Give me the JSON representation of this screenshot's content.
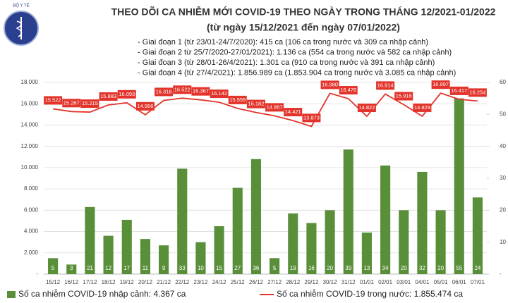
{
  "logo_text": "BỘ Y TẾ",
  "chart_data": {
    "type": "combo",
    "title": "THEO DÕI CA NHIỄM MỚI COVID-19 THEO NGÀY TRONG THÁNG 12/2021-01/2022",
    "subtitle": "(từ ngày 15/12/2021 đến ngày 07/01/2022)",
    "annotations": [
      "- Giai đoạn 1 (từ 23/01-24/7/2020): 415 ca (106 ca trong nước và 309 ca nhập cảnh)",
      "- Giai đoạn 2 từ 25/7/2020-27/01/2021): 1.136 ca (554 ca trong nước và 582 ca nhập cảnh)",
      "- Giai đoạn 3 (từ 28/01-26/4/2021): 1.301 ca (910 ca trong nước và 391 ca nhập cảnh)",
      "- Giai đoạn 4 (từ 27/4/2021): 1.856.989 ca (1.853.904 ca trong nước và 3.085 ca nhập cảnh)"
    ],
    "categories": [
      "15/12",
      "16/12",
      "17/12",
      "18/12",
      "19/12",
      "20/12",
      "21/12",
      "22/12",
      "23/12",
      "24/12",
      "25/12",
      "26/12",
      "27/12",
      "28/12",
      "29/12",
      "30/12",
      "31/12",
      "01/01",
      "02/01",
      "03/01",
      "04/01",
      "05/01",
      "06/01",
      "07/01"
    ],
    "series": [
      {
        "name": "Số ca nhiễm COVID-19 nhập cảnh: 4.367 ca",
        "type": "bar",
        "axis": "y2",
        "color": "#5a8f3a",
        "values": [
          5,
          3,
          21,
          12,
          17,
          11,
          9,
          33,
          10,
          15,
          27,
          36,
          5,
          19,
          16,
          20,
          39,
          13,
          34,
          20,
          32,
          20,
          55,
          24
        ]
      },
      {
        "name": "Số ca nhiễm COVID-19 trong nước: 1.855.474 ca",
        "type": "line",
        "color": "#e2342b",
        "values": [
          15522,
          15267,
          15215,
          15883,
          16093,
          14966,
          16316,
          16522,
          16367,
          16142,
          15559,
          15182,
          14867,
          14421,
          13873,
          16980,
          16476,
          14822,
          16914,
          15916,
          14829,
          16997,
          16417,
          16254
        ],
        "value_labels": [
          "15.522",
          "15.267",
          "15.215",
          "15.883",
          "16.093",
          "14.966",
          "16.316",
          "16.522",
          "16.367",
          "16.142",
          "15.559",
          "15.182",
          "14.867",
          "14.421",
          "13.873",
          "16.980",
          "16.476",
          "14.822",
          "16.914",
          "15.916",
          "14.829",
          "16.997",
          "16.417",
          "16.254"
        ]
      }
    ],
    "ylim": [
      0,
      18000
    ],
    "yticks": [
      {
        "value": 0,
        "label": "-"
      },
      {
        "value": 2000,
        "label": "2.000"
      },
      {
        "value": 4000,
        "label": "4.000"
      },
      {
        "value": 6000,
        "label": "6.000"
      },
      {
        "value": 8000,
        "label": "8.000"
      },
      {
        "value": 10000,
        "label": "10.000"
      },
      {
        "value": 12000,
        "label": "12.000"
      },
      {
        "value": 14000,
        "label": "14.000"
      },
      {
        "value": 16000,
        "label": "16.000"
      },
      {
        "value": 18000,
        "label": "18.000"
      }
    ],
    "y2lim": [
      0,
      60
    ],
    "y2ticks": [
      {
        "value": 0,
        "label": "-"
      },
      10,
      20,
      30,
      40,
      50,
      60
    ],
    "grid": true
  }
}
